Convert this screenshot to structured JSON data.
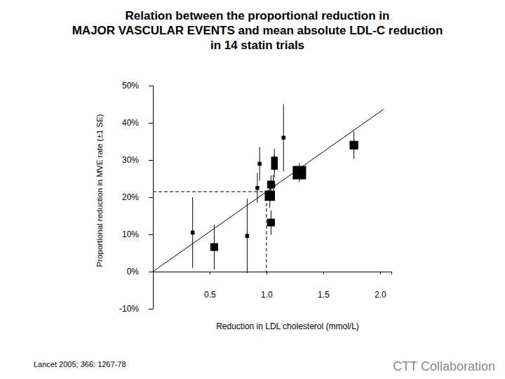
{
  "chart_data": {
    "type": "scatter",
    "title": [
      "Relation between the proportional reduction in",
      "MAJOR VASCULAR EVENTS and mean absolute LDL-C reduction",
      "in 14 statin trials"
    ],
    "x_label": "Reduction in LDL cholesterol (mmol/L)",
    "y_label": "Proportional reduction in MVE rate (±1 SE)",
    "xlim": [
      0,
      2.1
    ],
    "xticks": [
      {
        "value": 0.5,
        "label": "0.5"
      },
      {
        "value": 1.0,
        "label": "1.0"
      },
      {
        "value": 1.5,
        "label": "1.5"
      },
      {
        "value": 2.0,
        "label": "2.0"
      }
    ],
    "ylim": [
      -10,
      50
    ],
    "yticks": [
      {
        "value": 50,
        "label": "50%"
      },
      {
        "value": 40,
        "label": "40%"
      },
      {
        "value": 30,
        "label": "30%"
      },
      {
        "value": 20,
        "label": "20%"
      },
      {
        "value": 10,
        "label": "10%"
      },
      {
        "value": 0,
        "label": "0%"
      },
      {
        "value": -10,
        "label": "-10%"
      }
    ],
    "grid": false,
    "series": [
      {
        "type": "scatter",
        "marker": "square",
        "color": "#000000",
        "x": [
          0.35,
          0.54,
          0.83,
          0.92,
          0.94,
          1.03,
          1.04,
          1.04,
          1.06,
          1.07,
          1.07,
          1.15,
          1.29,
          1.77
        ],
        "values": [
          10.5,
          6.6,
          9.6,
          22.5,
          29.0,
          20.4,
          23.4,
          13.2,
          23.2,
          30.0,
          28.3,
          36.0,
          26.6,
          34.0
        ],
        "errors": [
          9.5,
          6.0,
          10.0,
          4.0,
          4.5,
          3.2,
          2.5,
          3.3,
          2.8,
          3.0,
          3.0,
          9.0,
          2.5,
          3.7
        ],
        "weights": [
          1,
          4,
          1,
          1,
          1,
          7,
          4,
          4,
          1,
          3,
          3,
          1,
          12,
          5
        ]
      },
      {
        "type": "line",
        "line_style": "solid",
        "color": "#000000",
        "x": [
          0,
          2.03
        ],
        "values": [
          0,
          43.6
        ]
      }
    ],
    "reference": {
      "x": 1.0,
      "y": 21.5,
      "line_style": "dashed"
    },
    "source": "Lancet  2005; 366: 1267-78",
    "credit": "CTT Collaboration"
  }
}
